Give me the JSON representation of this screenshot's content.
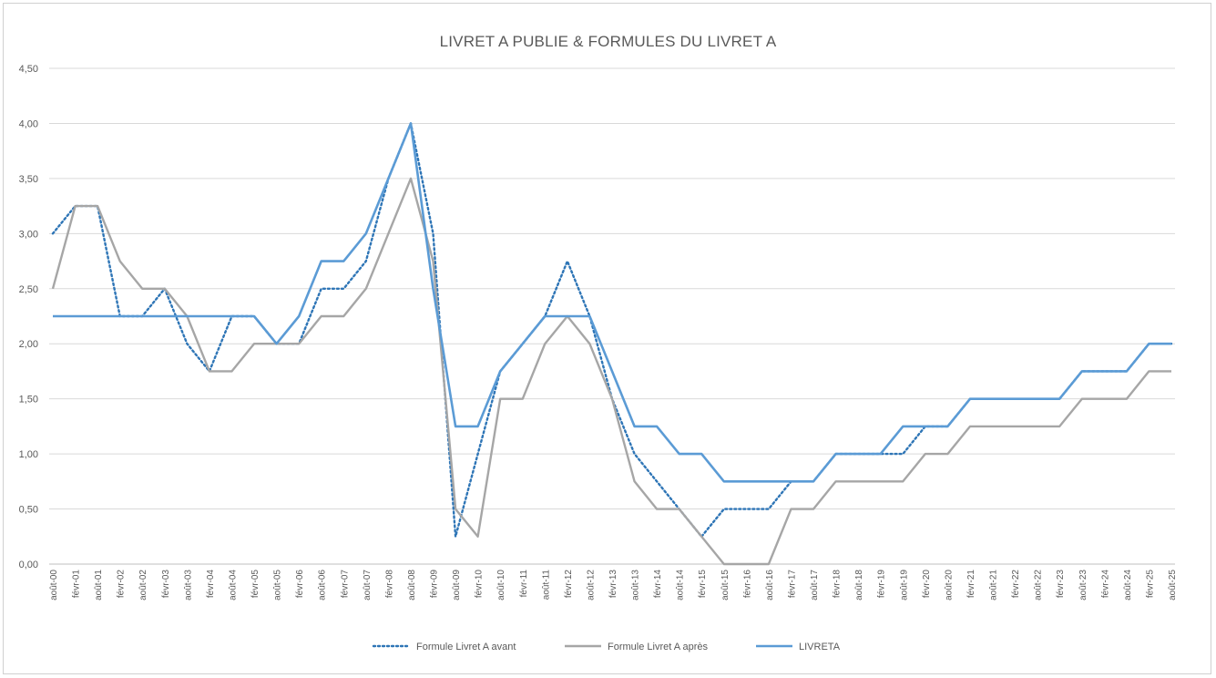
{
  "chart_data": {
    "type": "line",
    "title": "LIVRET A PUBLIE & FORMULES DU LIVRET A",
    "xlabel": "",
    "ylabel": "",
    "ylim": [
      0,
      4.5
    ],
    "y_ticks": [
      "0,00",
      "0,50",
      "1,00",
      "1,50",
      "2,00",
      "2,50",
      "3,00",
      "3,50",
      "4,00",
      "4,50"
    ],
    "grid": true,
    "legend_position": "bottom",
    "categories": [
      "août-00",
      "févr-01",
      "août-01",
      "févr-02",
      "août-02",
      "févr-03",
      "août-03",
      "févr-04",
      "août-04",
      "févr-05",
      "août-05",
      "févr-06",
      "août-06",
      "févr-07",
      "août-07",
      "févr-08",
      "août-08",
      "févr-09",
      "août-09",
      "févr-10",
      "août-10",
      "févr-11",
      "août-11",
      "févr-12",
      "août-12",
      "févr-13",
      "août-13",
      "févr-14",
      "août-14",
      "févr-15",
      "août-15",
      "févr-16",
      "août-16",
      "févr-17",
      "août-17",
      "févr-18",
      "août-18",
      "févr-19",
      "août-19",
      "févr-20",
      "août-20",
      "févr-21",
      "août-21",
      "févr-22",
      "août-22",
      "févr-23",
      "août-23",
      "févr-24",
      "août-24",
      "févr-25",
      "août-25"
    ],
    "series": [
      {
        "name": "Formule Livret A avant",
        "color": "#2e75b6",
        "style": "dotted",
        "values": [
          3.0,
          3.25,
          3.25,
          2.25,
          2.25,
          2.5,
          2.0,
          1.75,
          2.25,
          2.25,
          2.0,
          2.0,
          2.5,
          2.5,
          2.75,
          3.5,
          4.0,
          3.0,
          0.25,
          1.0,
          1.75,
          2.0,
          2.25,
          2.75,
          2.25,
          1.5,
          1.0,
          0.75,
          0.5,
          0.25,
          0.5,
          0.5,
          0.5,
          0.75,
          0.75,
          1.0,
          1.0,
          1.0,
          1.0,
          1.25,
          1.25,
          1.5,
          1.5,
          1.5,
          1.5,
          1.5,
          1.75,
          1.75,
          1.75,
          2.0,
          2.0
        ]
      },
      {
        "name": "Formule Livret A après",
        "color": "#a6a6a6",
        "style": "solid",
        "values": [
          2.5,
          3.25,
          3.25,
          2.75,
          2.5,
          2.5,
          2.25,
          1.75,
          1.75,
          2.0,
          2.0,
          2.0,
          2.25,
          2.25,
          2.5,
          3.0,
          3.5,
          2.75,
          0.5,
          0.25,
          1.5,
          1.5,
          2.0,
          2.25,
          2.0,
          1.5,
          0.75,
          0.5,
          0.5,
          0.25,
          0.0,
          0.0,
          0.0,
          0.5,
          0.5,
          0.75,
          0.75,
          0.75,
          0.75,
          1.0,
          1.0,
          1.25,
          1.25,
          1.25,
          1.25,
          1.25,
          1.5,
          1.5,
          1.5,
          1.75,
          1.75
        ]
      },
      {
        "name": "LIVRETA",
        "color": "#5b9bd5",
        "style": "solid",
        "values": [
          2.25,
          2.25,
          2.25,
          2.25,
          2.25,
          2.25,
          2.25,
          2.25,
          2.25,
          2.25,
          2.0,
          2.25,
          2.75,
          2.75,
          3.0,
          3.5,
          4.0,
          2.5,
          1.25,
          1.25,
          1.75,
          2.0,
          2.25,
          2.25,
          2.25,
          1.75,
          1.25,
          1.25,
          1.0,
          1.0,
          0.75,
          0.75,
          0.75,
          0.75,
          0.75,
          1.0,
          1.0,
          1.0,
          1.25,
          1.25,
          1.25,
          1.5,
          1.5,
          1.5,
          1.5,
          1.5,
          1.75,
          1.75,
          1.75,
          2.0,
          2.0
        ]
      }
    ]
  }
}
